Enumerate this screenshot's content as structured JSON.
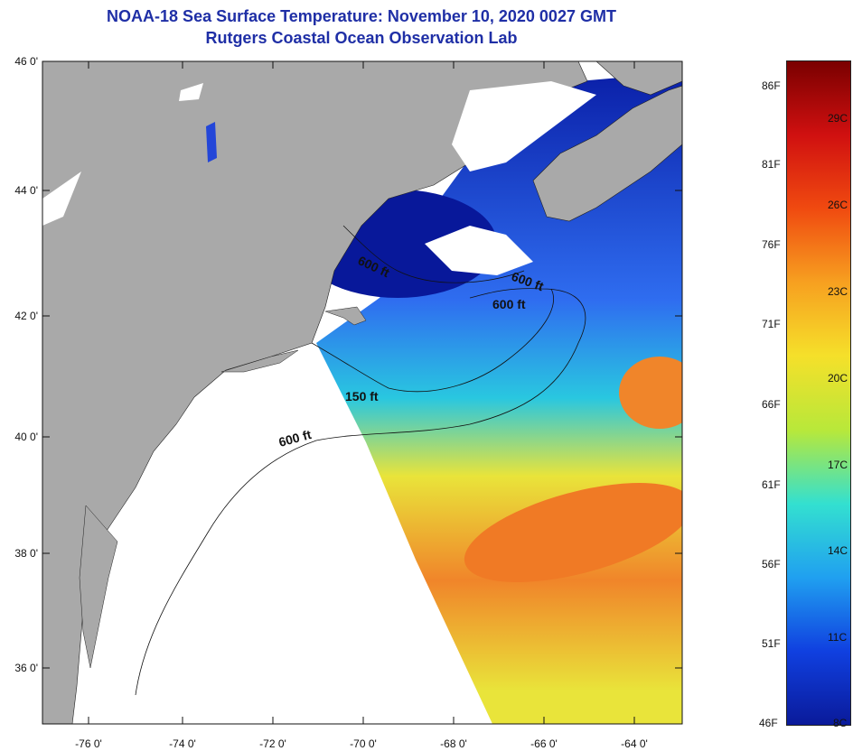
{
  "title": {
    "line1": "NOAA-18 Sea Surface Temperature:  November 10, 2020 0027 GMT",
    "line2": "Rutgers Coastal Ocean Observation Lab"
  },
  "map": {
    "lat_labels": [
      "46 0'",
      "44 0'",
      "42 0'",
      "40 0'",
      "38 0'",
      "36 0'"
    ],
    "lon_labels": [
      "-76 0'",
      "-74 0'",
      "-72 0'",
      "-70 0'",
      "-68 0'",
      "-66 0'",
      "-64 0'"
    ],
    "contour_labels": [
      "600 ft",
      "600 ft",
      "600 ft",
      "150 ft",
      "600 ft"
    ],
    "colors": {
      "land": "#a9a9a9",
      "ocean_nodata": "#ffffff",
      "cold": "#0a1fa8",
      "cool": "#2f6df0",
      "mid": "#29c7e0",
      "warm": "#e9e43a",
      "hot": "#f0852a"
    }
  },
  "colorbar": {
    "fahrenheit": [
      "86F",
      "81F",
      "76F",
      "71F",
      "66F",
      "61F",
      "56F",
      "51F",
      "46F"
    ],
    "celsius": [
      "29C",
      "26C",
      "23C",
      "20C",
      "17C",
      "14C",
      "11C",
      "8C"
    ],
    "gradient": [
      "#7a0000",
      "#d01010",
      "#f04a10",
      "#f7a020",
      "#f5e02a",
      "#b8e83a",
      "#33e0d0",
      "#20a0f0",
      "#1040e0",
      "#0a1a9a"
    ]
  }
}
